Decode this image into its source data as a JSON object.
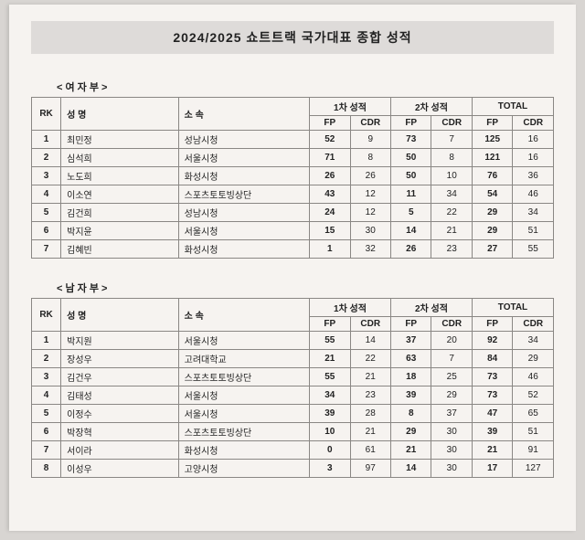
{
  "title": "2024/2025  쇼트트랙 국가대표 종합 성적",
  "sections": [
    {
      "label": "< 여 자 부 >",
      "headers": {
        "rk": "RK",
        "name": "성    명",
        "team": "소    속",
        "group1": "1차 성적",
        "group2": "2차 성적",
        "groupTotal": "TOTAL",
        "fp": "FP",
        "cdr": "CDR"
      },
      "rows": [
        {
          "rk": "1",
          "name": "최민정",
          "team": "성남시청",
          "fp1": "52",
          "cdr1": "9",
          "fp2": "73",
          "cdr2": "7",
          "fpT": "125",
          "cdrT": "16"
        },
        {
          "rk": "2",
          "name": "심석희",
          "team": "서울시청",
          "fp1": "71",
          "cdr1": "8",
          "fp2": "50",
          "cdr2": "8",
          "fpT": "121",
          "cdrT": "16"
        },
        {
          "rk": "3",
          "name": "노도희",
          "team": "화성시청",
          "fp1": "26",
          "cdr1": "26",
          "fp2": "50",
          "cdr2": "10",
          "fpT": "76",
          "cdrT": "36"
        },
        {
          "rk": "4",
          "name": "이소연",
          "team": "스포츠토토빙상단",
          "fp1": "43",
          "cdr1": "12",
          "fp2": "11",
          "cdr2": "34",
          "fpT": "54",
          "cdrT": "46"
        },
        {
          "rk": "5",
          "name": "김건희",
          "team": "성남시청",
          "fp1": "24",
          "cdr1": "12",
          "fp2": "5",
          "cdr2": "22",
          "fpT": "29",
          "cdrT": "34"
        },
        {
          "rk": "6",
          "name": "박지윤",
          "team": "서울시청",
          "fp1": "15",
          "cdr1": "30",
          "fp2": "14",
          "cdr2": "21",
          "fpT": "29",
          "cdrT": "51"
        },
        {
          "rk": "7",
          "name": "김혜빈",
          "team": "화성시청",
          "fp1": "1",
          "cdr1": "32",
          "fp2": "26",
          "cdr2": "23",
          "fpT": "27",
          "cdrT": "55"
        }
      ]
    },
    {
      "label": "< 남 자 부 >",
      "headers": {
        "rk": "RK",
        "name": "성    명",
        "team": "소    속",
        "group1": "1차 성적",
        "group2": "2차 성적",
        "groupTotal": "TOTAL",
        "fp": "FP",
        "cdr": "CDR"
      },
      "rows": [
        {
          "rk": "1",
          "name": "박지원",
          "team": "서울시청",
          "fp1": "55",
          "cdr1": "14",
          "fp2": "37",
          "cdr2": "20",
          "fpT": "92",
          "cdrT": "34"
        },
        {
          "rk": "2",
          "name": "장성우",
          "team": "고려대학교",
          "fp1": "21",
          "cdr1": "22",
          "fp2": "63",
          "cdr2": "7",
          "fpT": "84",
          "cdrT": "29"
        },
        {
          "rk": "3",
          "name": "김건우",
          "team": "스포츠토토빙상단",
          "fp1": "55",
          "cdr1": "21",
          "fp2": "18",
          "cdr2": "25",
          "fpT": "73",
          "cdrT": "46"
        },
        {
          "rk": "4",
          "name": "김태성",
          "team": "서울시청",
          "fp1": "34",
          "cdr1": "23",
          "fp2": "39",
          "cdr2": "29",
          "fpT": "73",
          "cdrT": "52"
        },
        {
          "rk": "5",
          "name": "이정수",
          "team": "서울시청",
          "fp1": "39",
          "cdr1": "28",
          "fp2": "8",
          "cdr2": "37",
          "fpT": "47",
          "cdrT": "65"
        },
        {
          "rk": "6",
          "name": "박장혁",
          "team": "스포츠토토빙상단",
          "fp1": "10",
          "cdr1": "21",
          "fp2": "29",
          "cdr2": "30",
          "fpT": "39",
          "cdrT": "51"
        },
        {
          "rk": "7",
          "name": "서이라",
          "team": "화성시청",
          "fp1": "0",
          "cdr1": "61",
          "fp2": "21",
          "cdr2": "30",
          "fpT": "21",
          "cdrT": "91"
        },
        {
          "rk": "8",
          "name": "이성우",
          "team": "고양시청",
          "fp1": "3",
          "cdr1": "97",
          "fp2": "14",
          "cdr2": "30",
          "fpT": "17",
          "cdrT": "127"
        }
      ]
    }
  ]
}
